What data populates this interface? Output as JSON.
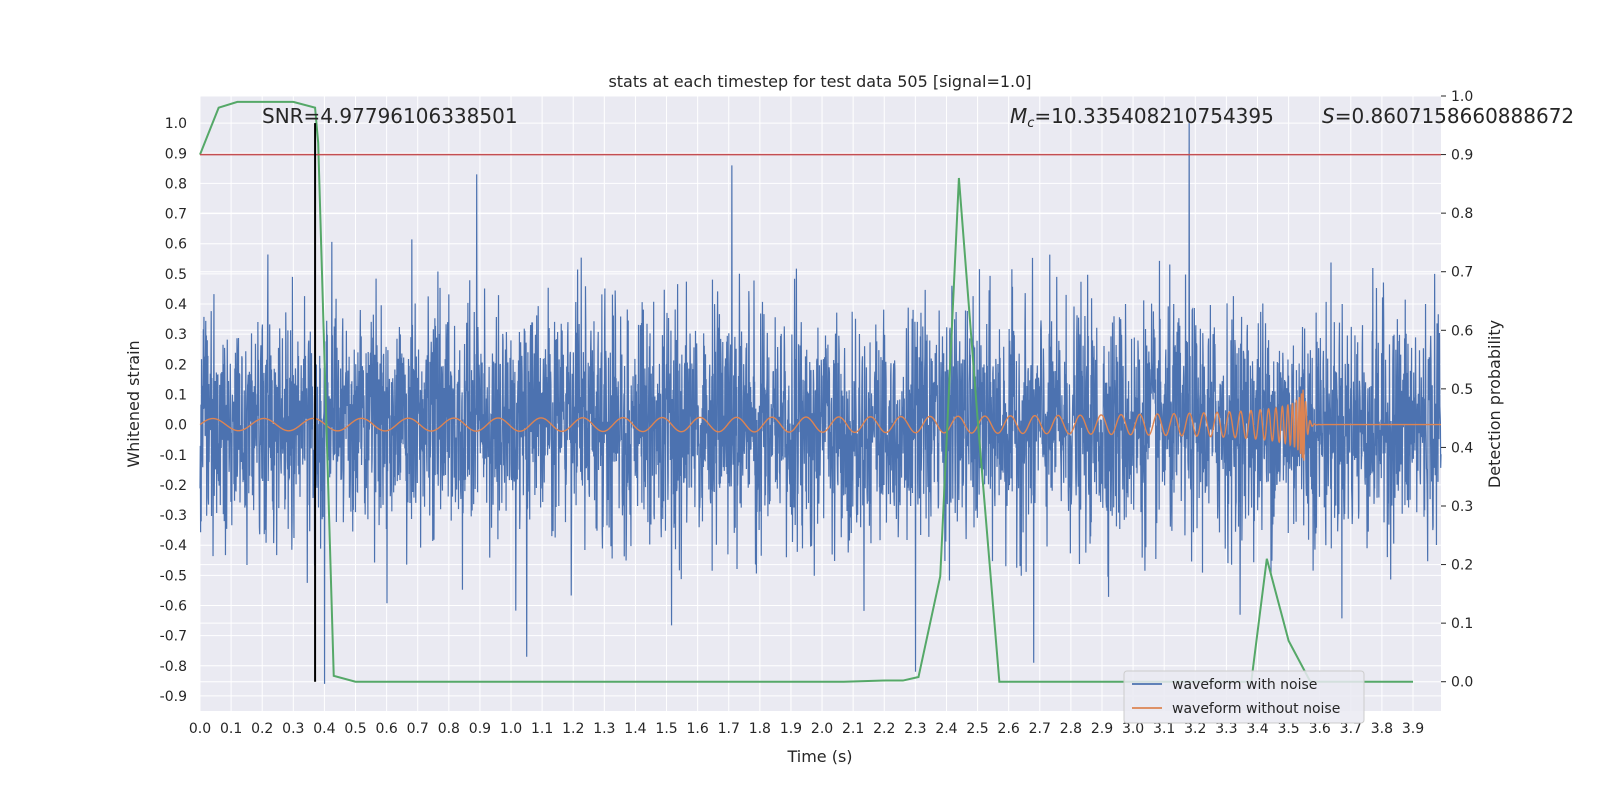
{
  "chart_data": {
    "type": "line",
    "title": "stats at each timestep for test data 505 [signal=1.0]",
    "xlabel": "Time (s)",
    "ylabel_left": "Whitened strain",
    "ylabel_right": "Detection probability",
    "xlim": [
      0.0,
      3.99
    ],
    "ylim_left": [
      -0.95,
      1.09
    ],
    "ylim_right": [
      -0.05,
      1.0
    ],
    "x_ticks": [
      "0.0",
      "0.1",
      "0.2",
      "0.3",
      "0.4",
      "0.5",
      "0.6",
      "0.7",
      "0.8",
      "0.9",
      "1.0",
      "1.1",
      "1.2",
      "1.3",
      "1.4",
      "1.5",
      "1.6",
      "1.7",
      "1.8",
      "1.9",
      "2.0",
      "2.1",
      "2.2",
      "2.3",
      "2.4",
      "2.5",
      "2.6",
      "2.7",
      "2.8",
      "2.9",
      "3.0",
      "3.1",
      "3.2",
      "3.3",
      "3.4",
      "3.5",
      "3.6",
      "3.7",
      "3.8",
      "3.9"
    ],
    "y_ticks_left": [
      "1.0",
      "0.9",
      "0.8",
      "0.7",
      "0.6",
      "0.5",
      "0.4",
      "0.3",
      "0.2",
      "0.1",
      "0.0",
      "-0.1",
      "-0.2",
      "-0.3",
      "-0.4",
      "-0.5",
      "-0.6",
      "-0.7",
      "-0.8",
      "-0.9"
    ],
    "y_ticks_right": [
      "1.0",
      "0.9",
      "0.8",
      "0.7",
      "0.6",
      "0.5",
      "0.4",
      "0.3",
      "0.2",
      "0.1",
      "0.0"
    ],
    "grid": true,
    "legend_position": "bottom-right",
    "series": [
      {
        "name": "waveform with noise",
        "color": "#4c72b0",
        "axis": "left",
        "noise_std": 0.19,
        "notable_peaks": [
          [
            0.37,
            1.0
          ],
          [
            0.89,
            0.83
          ],
          [
            1.71,
            0.86
          ],
          [
            3.18,
            1.0
          ],
          [
            1.05,
            -0.77
          ],
          [
            2.3,
            -0.82
          ],
          [
            2.68,
            -0.79
          ],
          [
            0.4,
            -0.86
          ]
        ]
      },
      {
        "name": "waveform without noise",
        "color": "#dd8452",
        "axis": "left",
        "chirp_start_amplitude": 0.02,
        "chirp_peak_amplitude": 0.14,
        "merger_time": 3.55
      },
      {
        "name": "detection probability",
        "color": "#55a868",
        "axis": "right",
        "x": [
          0.0,
          0.06,
          0.12,
          0.2,
          0.3,
          0.37,
          0.38,
          0.43,
          0.5,
          1.0,
          2.07,
          2.2,
          2.26,
          2.31,
          2.38,
          2.44,
          2.5,
          2.57,
          3.0,
          3.3,
          3.38,
          3.43,
          3.5,
          3.57,
          3.9
        ],
        "values": [
          0.9,
          0.98,
          0.99,
          0.99,
          0.99,
          0.98,
          0.92,
          0.01,
          0.0,
          0.0,
          0.0,
          0.002,
          0.002,
          0.008,
          0.18,
          0.86,
          0.45,
          0.0,
          0.0,
          0.0,
          0.0,
          0.21,
          0.07,
          0.0,
          0.0
        ]
      }
    ],
    "threshold_line": {
      "value": 0.9,
      "axis": "right",
      "color": "#c44e52"
    },
    "vertical_marker": {
      "x": 0.37,
      "color": "#000000"
    },
    "annotations": {
      "snr": "SNR=4.97796106338501",
      "mc_symbol": "M",
      "mc_sub": "c",
      "mc_value": "=10.335408210754395",
      "s_symbol": "S",
      "s_value": "=0.8607158660888672"
    }
  }
}
